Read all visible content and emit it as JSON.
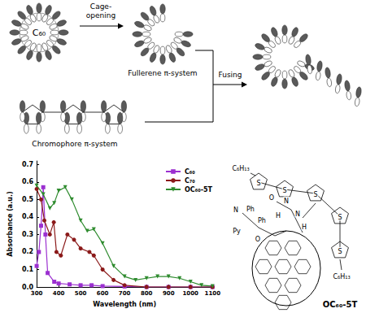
{
  "chart_data": {
    "type": "line",
    "x_label": "Wavelength (nm)",
    "y_label": "Absorbance (a.u.)",
    "xlim": [
      300,
      1100
    ],
    "xticks": [
      300,
      400,
      500,
      600,
      700,
      800,
      900,
      1000,
      1100
    ],
    "ylim": [
      0,
      0.72
    ],
    "yticks": [
      {
        "value": 0,
        "label": "0.0"
      },
      0.1,
      0.2,
      0.3,
      0.4,
      0.5,
      0.6,
      0.7
    ],
    "grid": false,
    "legend": "upper right",
    "series": [
      {
        "name": "C₆₀",
        "color": "#9b30d0",
        "marker": "square",
        "x": [
          300,
          310,
          320,
          330,
          340,
          350,
          380,
          400,
          450,
          500,
          550,
          600,
          700,
          800,
          900,
          1000,
          1100
        ],
        "values": [
          0.12,
          0.2,
          0.35,
          0.57,
          0.3,
          0.08,
          0.03,
          0.02,
          0.015,
          0.01,
          0.01,
          0.005,
          0.003,
          0,
          0,
          0,
          0
        ]
      },
      {
        "name": "C₇₀",
        "color": "#8b1a1a",
        "marker": "circle",
        "x": [
          300,
          320,
          335,
          360,
          378,
          390,
          410,
          440,
          470,
          500,
          540,
          560,
          600,
          650,
          700,
          800,
          900,
          1000,
          1100
        ],
        "values": [
          0.56,
          0.5,
          0.38,
          0.3,
          0.37,
          0.2,
          0.18,
          0.3,
          0.27,
          0.22,
          0.2,
          0.18,
          0.1,
          0.04,
          0.01,
          0,
          0,
          0,
          0
        ]
      },
      {
        "name": "OC₆₀-5T",
        "color": "#2e8b2e",
        "marker": "triangle_down",
        "x": [
          300,
          330,
          360,
          380,
          400,
          430,
          460,
          500,
          530,
          560,
          600,
          650,
          700,
          750,
          800,
          850,
          900,
          950,
          1000,
          1050,
          1100
        ],
        "values": [
          0.58,
          0.53,
          0.45,
          0.48,
          0.55,
          0.57,
          0.5,
          0.38,
          0.32,
          0.33,
          0.25,
          0.12,
          0.06,
          0.04,
          0.05,
          0.06,
          0.06,
          0.05,
          0.03,
          0.01,
          0.005
        ]
      }
    ]
  },
  "diagram": {
    "sphere_label": "C₆₀",
    "step1_label": [
      "Cage-",
      "opening"
    ],
    "opened_label": "Fullerene π-system",
    "chromophore_label": "Chromophore π-system",
    "step2_label": "Fusing"
  },
  "structure": {
    "substituents": [
      "C₆H₁₃",
      "C₆H₁₃"
    ],
    "atoms": [
      "N",
      "Ph",
      "Ph",
      "Py",
      "O",
      "O",
      "N",
      "N",
      "H",
      "H",
      "S",
      "S",
      "S",
      "S",
      "S"
    ],
    "name": "OC₆₀-5T"
  }
}
